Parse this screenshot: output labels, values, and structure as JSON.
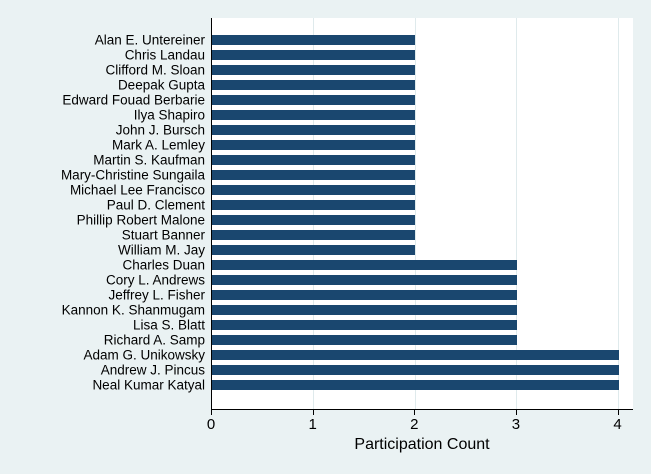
{
  "figure": {
    "background": "#eaf2f3",
    "plot_background": "#ffffff",
    "axis_color": "#000000",
    "grid_color": "#dfeaec",
    "text_color": "#000000"
  },
  "chart_data": {
    "type": "bar",
    "orientation": "horizontal",
    "title": "",
    "xlabel": "Participation Count",
    "ylabel": "",
    "xlim": [
      0,
      4
    ],
    "xticks": [
      0,
      1,
      2,
      3,
      4
    ],
    "grid": true,
    "legend": false,
    "bar_color": "#1a476f",
    "categories": [
      "Alan E. Untereiner",
      "Chris Landau",
      "Clifford M. Sloan",
      "Deepak Gupta",
      "Edward Fouad Berbarie",
      "Ilya Shapiro",
      "John J. Bursch",
      "Mark A. Lemley",
      "Martin S. Kaufman",
      "Mary-Christine Sungaila",
      "Michael Lee Francisco",
      "Paul D. Clement",
      "Phillip Robert Malone",
      "Stuart Banner",
      "William M. Jay",
      "Charles Duan",
      "Cory L. Andrews",
      "Jeffrey L. Fisher",
      "Kannon K. Shanmugam",
      "Lisa S. Blatt",
      "Richard A. Samp",
      "Adam G. Unikowsky",
      "Andrew J. Pincus",
      "Neal Kumar Katyal"
    ],
    "values": [
      2,
      2,
      2,
      2,
      2,
      2,
      2,
      2,
      2,
      2,
      2,
      2,
      2,
      2,
      2,
      3,
      3,
      3,
      3,
      3,
      3,
      4,
      4,
      4
    ]
  }
}
